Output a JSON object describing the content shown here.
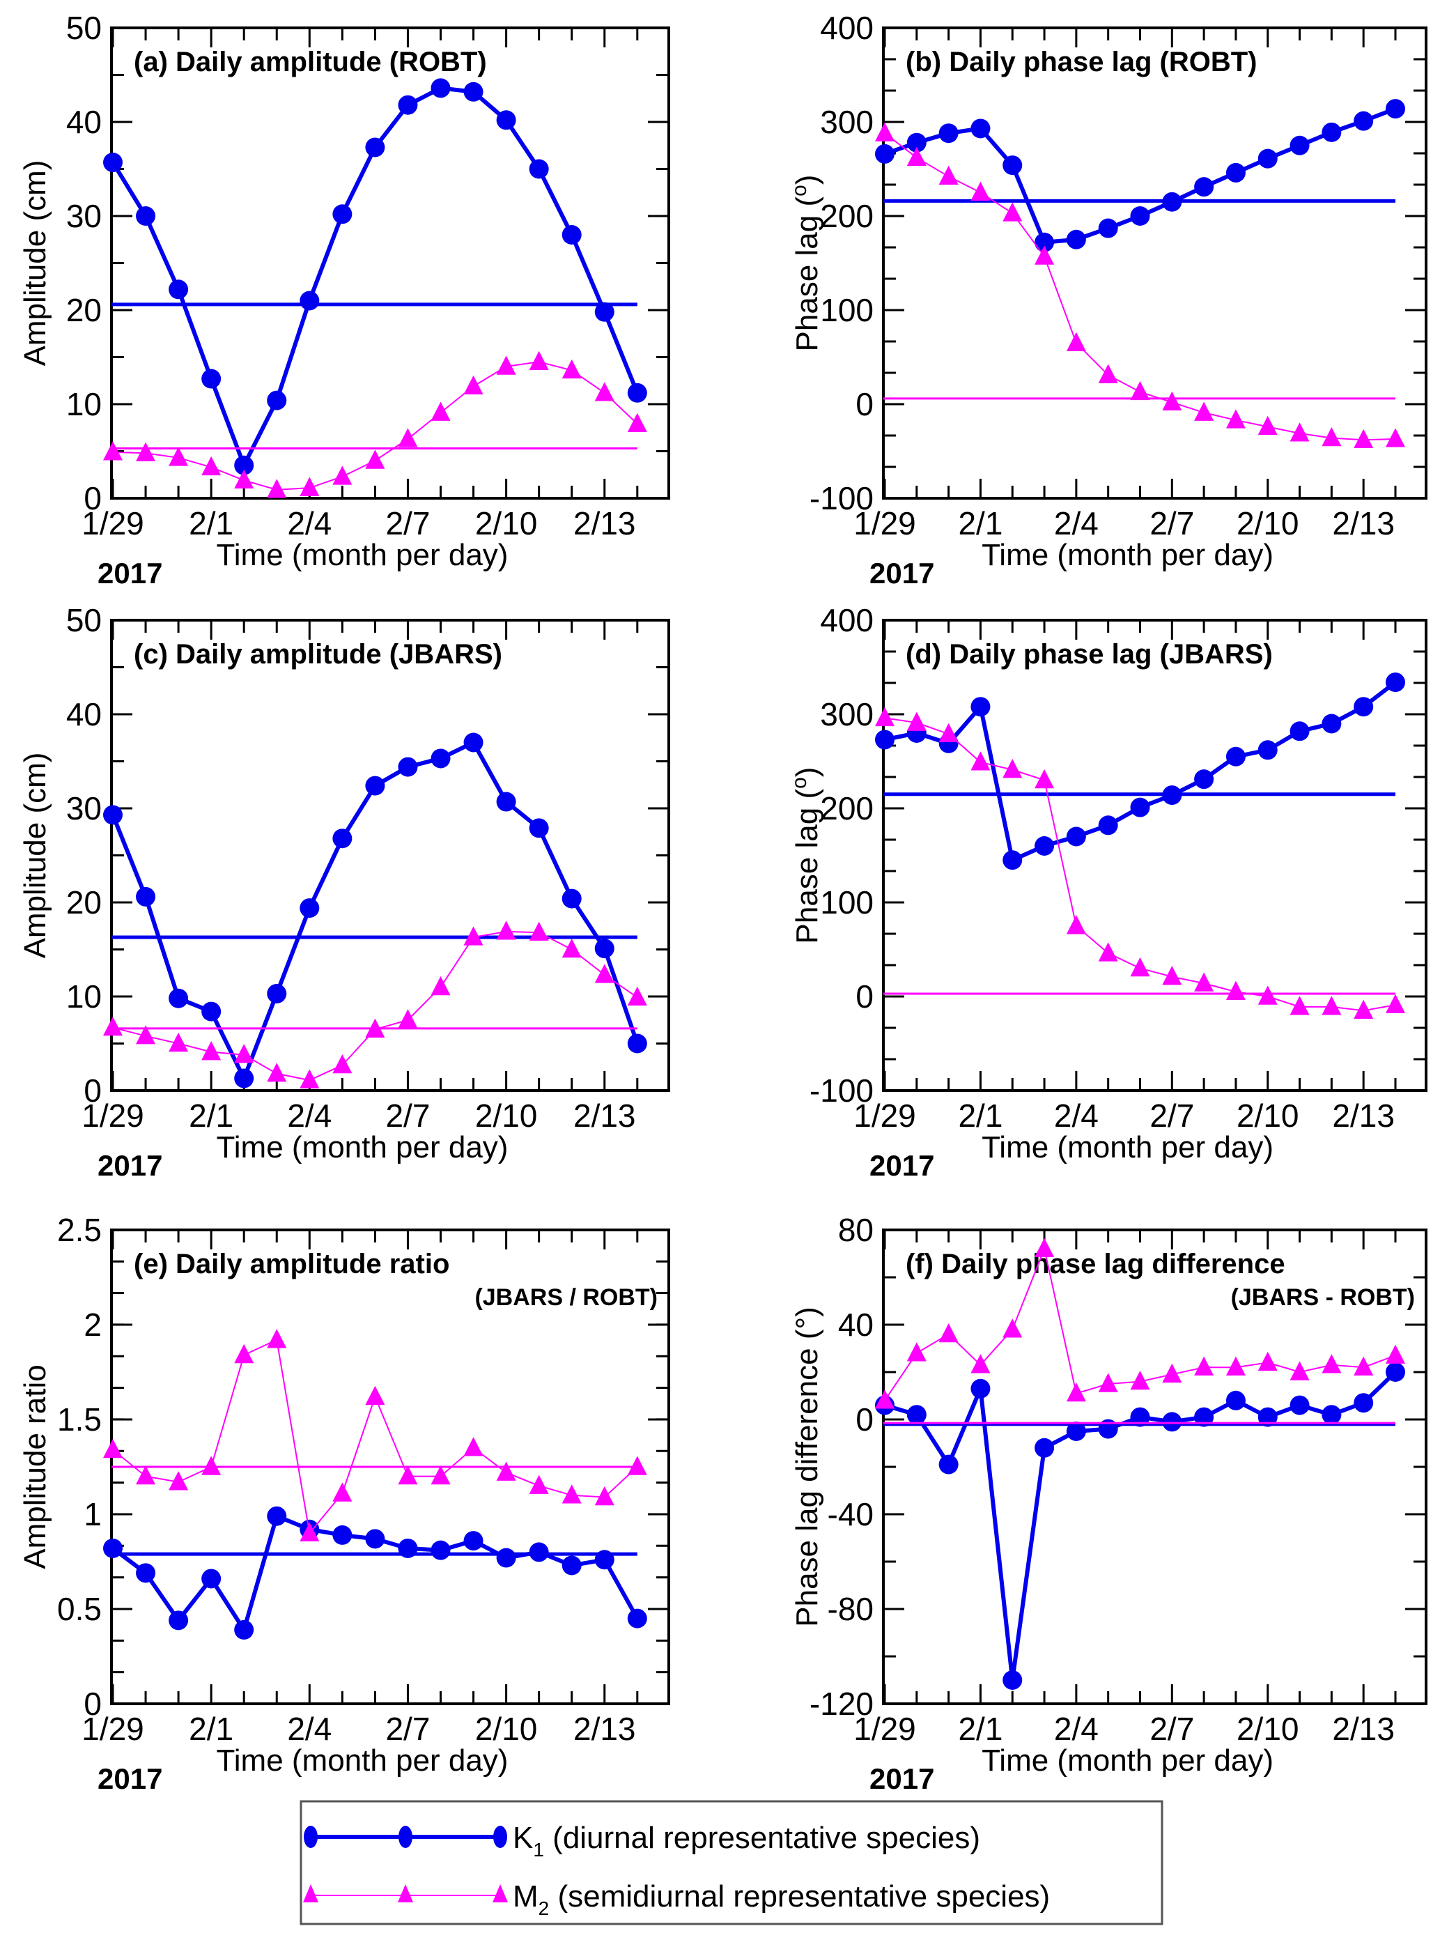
{
  "chart_data": {
    "type": "line",
    "shared": {
      "x_categories": [
        "1/29",
        "1/30",
        "1/31",
        "2/1",
        "2/2",
        "2/3",
        "2/4",
        "2/5",
        "2/6",
        "2/7",
        "2/8",
        "2/9",
        "2/10",
        "2/11",
        "2/12",
        "2/13",
        "2/14"
      ],
      "x_tick_labels": [
        {
          "index": 0,
          "label": "1/29"
        },
        {
          "index": 3,
          "label": "2/1"
        },
        {
          "index": 6,
          "label": "2/4"
        },
        {
          "index": 9,
          "label": "2/7"
        },
        {
          "index": 12,
          "label": "2/10"
        },
        {
          "index": 15,
          "label": "2/13"
        }
      ],
      "xlabel": "Time (month per day)",
      "year_label": "2017",
      "colors": {
        "K1": "#0000ee",
        "M2": "#ff00ff",
        "axis": "#000000"
      }
    },
    "legend": {
      "placement": "bottom-center",
      "entries": [
        {
          "series": "K1",
          "symbol": "K",
          "subscript": "1",
          "text": " (diurnal representative species)",
          "marker": "circle"
        },
        {
          "series": "M2",
          "symbol": "M",
          "subscript": "2",
          "text": " (semidiurnal representative species)",
          "marker": "triangle"
        }
      ]
    },
    "panels": [
      {
        "id": "a",
        "title": "(a) Daily amplitude (ROBT)",
        "subtitle": "",
        "ylabel": "Amplitude (cm)",
        "ylabel_sup": "",
        "ylim": [
          0,
          50
        ],
        "yticks": [
          0,
          10,
          20,
          30,
          40,
          50
        ],
        "yminor": 5,
        "ytick_labels": [
          "0",
          "10",
          "20",
          "30",
          "40",
          "50"
        ],
        "series": [
          {
            "name": "K1",
            "values": [
              35.7,
              30.0,
              22.2,
              12.7,
              3.5,
              10.4,
              21.0,
              30.2,
              37.3,
              41.8,
              43.6,
              43.2,
              40.2,
              35.0,
              28.0,
              19.8,
              11.2
            ],
            "mean": 20.6
          },
          {
            "name": "M2",
            "values": [
              4.9,
              4.8,
              4.3,
              3.3,
              1.9,
              0.9,
              1.1,
              2.3,
              4.0,
              6.3,
              9.1,
              11.9,
              14.0,
              14.5,
              13.6,
              11.2,
              7.9
            ],
            "mean": 5.3
          }
        ]
      },
      {
        "id": "b",
        "title": "(b) Daily phase lag (ROBT)",
        "subtitle": "",
        "ylabel": "Phase lag (",
        "ylabel_sup": "o",
        "ylabel_end": ")",
        "ylim": [
          -100,
          400
        ],
        "yticks": [
          -100,
          0,
          100,
          200,
          300,
          400
        ],
        "yminor": 33.333,
        "ytick_labels": [
          "-100",
          "0",
          "100",
          "200",
          "300",
          "400"
        ],
        "series": [
          {
            "name": "K1",
            "values": [
              266,
              278,
              288,
              293,
              254,
              172,
              175,
              187,
              200,
              215,
              231,
              246,
              261,
              275,
              289,
              301,
              314
            ],
            "mean": 216
          },
          {
            "name": "M2",
            "values": [
              288,
              262,
              242,
              225,
              203,
              157,
              65,
              31,
              13,
              2,
              -9,
              -17,
              -24,
              -31,
              -36,
              -38,
              -37
            ],
            "mean": 6
          }
        ]
      },
      {
        "id": "c",
        "title": "(c) Daily amplitude (JBARS)",
        "subtitle": "",
        "ylabel": "Amplitude (cm)",
        "ylabel_sup": "",
        "ylim": [
          0,
          50
        ],
        "yticks": [
          0,
          10,
          20,
          30,
          40,
          50
        ],
        "yminor": 5,
        "ytick_labels": [
          "0",
          "10",
          "20",
          "30",
          "40",
          "50"
        ],
        "series": [
          {
            "name": "K1",
            "values": [
              29.3,
              20.6,
              9.8,
              8.4,
              1.3,
              10.3,
              19.4,
              26.8,
              32.4,
              34.4,
              35.3,
              37.0,
              30.7,
              27.9,
              20.4,
              15.1,
              5.0
            ],
            "mean": 16.3
          },
          {
            "name": "M2",
            "values": [
              6.7,
              5.8,
              5.0,
              4.1,
              3.8,
              1.8,
              1.1,
              2.7,
              6.5,
              7.5,
              11.0,
              16.3,
              16.9,
              16.8,
              15.0,
              12.3,
              9.9
            ],
            "mean": 6.6
          }
        ]
      },
      {
        "id": "d",
        "title": "(d) Daily phase lag (JBARS)",
        "subtitle": "",
        "ylabel": "Phase lag (",
        "ylabel_sup": "o",
        "ylabel_end": ")",
        "ylim": [
          -100,
          400
        ],
        "yticks": [
          -100,
          0,
          100,
          200,
          300,
          400
        ],
        "yminor": 33.333,
        "ytick_labels": [
          "-100",
          "0",
          "100",
          "200",
          "300",
          "400"
        ],
        "series": [
          {
            "name": "K1",
            "values": [
              273,
              280,
              269,
              308,
              145,
              160,
              170,
              182,
              201,
              214,
              231,
              255,
              262,
              282,
              290,
              308,
              334
            ],
            "mean": 215
          },
          {
            "name": "M2",
            "values": [
              296,
              291,
              279,
              249,
              241,
              230,
              75,
              46,
              30,
              21,
              14,
              5,
              0,
              -11,
              -11,
              -15,
              -9
            ],
            "mean": 3
          }
        ]
      },
      {
        "id": "e",
        "title": "(e) Daily amplitude ratio",
        "subtitle": "(JBARS / ROBT)",
        "ylabel": "Amplitude ratio",
        "ylabel_sup": "",
        "ylim": [
          0,
          2.5
        ],
        "yticks": [
          0,
          0.5,
          1,
          1.5,
          2,
          2.5
        ],
        "yminor": 0.1667,
        "ytick_labels": [
          "0",
          "0.5",
          "1",
          "1.5",
          "2",
          "2.5"
        ],
        "series": [
          {
            "name": "K1",
            "values": [
              0.82,
              0.69,
              0.44,
              0.66,
              0.39,
              0.99,
              0.92,
              0.89,
              0.87,
              0.82,
              0.81,
              0.86,
              0.77,
              0.8,
              0.73,
              0.76,
              0.45
            ],
            "mean": 0.79
          },
          {
            "name": "M2",
            "values": [
              1.34,
              1.2,
              1.17,
              1.25,
              1.84,
              1.92,
              0.9,
              1.11,
              1.62,
              1.2,
              1.2,
              1.35,
              1.22,
              1.15,
              1.1,
              1.09,
              1.25
            ],
            "mean": 1.25
          }
        ]
      },
      {
        "id": "f",
        "title": "(f) Daily phase lag difference",
        "subtitle": "(JBARS - ROBT)",
        "ylabel": "Phase lag difference (°)",
        "ylabel_sup": "",
        "ylim": [
          -120,
          80
        ],
        "yticks": [
          -120,
          -80,
          -40,
          0,
          40,
          80
        ],
        "yminor": 20,
        "ytick_labels": [
          "-120",
          "-80",
          "-40",
          "0",
          "40",
          "80"
        ],
        "series": [
          {
            "name": "K1",
            "values": [
              6,
              2,
              -19,
              13,
              -110,
              -12,
              -5,
              -4,
              1,
              -1,
              1,
              8,
              1,
              6,
              2,
              7,
              20
            ],
            "mean": -2
          },
          {
            "name": "M2",
            "values": [
              8,
              28,
              36,
              23,
              38,
              72,
              11,
              15,
              16,
              19,
              22,
              22,
              24,
              20,
              23,
              22,
              27
            ],
            "mean": -1.5
          }
        ]
      }
    ]
  }
}
